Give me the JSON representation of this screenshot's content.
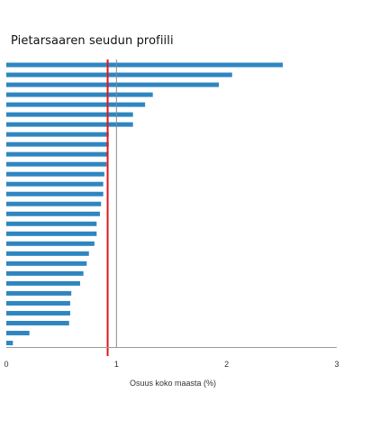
{
  "chart_data": {
    "type": "bar",
    "orientation": "horizontal",
    "title": "Pietarsaaren seudun profiili",
    "xlabel": "Osuus koko maasta (%)",
    "ylabel": "",
    "xlim": [
      0,
      3
    ],
    "xticks": [
      "0",
      "1",
      "2",
      "3"
    ],
    "values": [
      2.51,
      2.05,
      1.93,
      1.33,
      1.26,
      1.15,
      1.15,
      0.93,
      0.93,
      0.92,
      0.91,
      0.89,
      0.88,
      0.88,
      0.86,
      0.85,
      0.82,
      0.82,
      0.8,
      0.75,
      0.73,
      0.7,
      0.67,
      0.59,
      0.58,
      0.58,
      0.57,
      0.21,
      0.06
    ],
    "reference_line": 0.92,
    "unit_line": 1,
    "bar_color": "#2e86c1",
    "reference_color": "#e0161b",
    "legend": "none",
    "grid": false
  }
}
